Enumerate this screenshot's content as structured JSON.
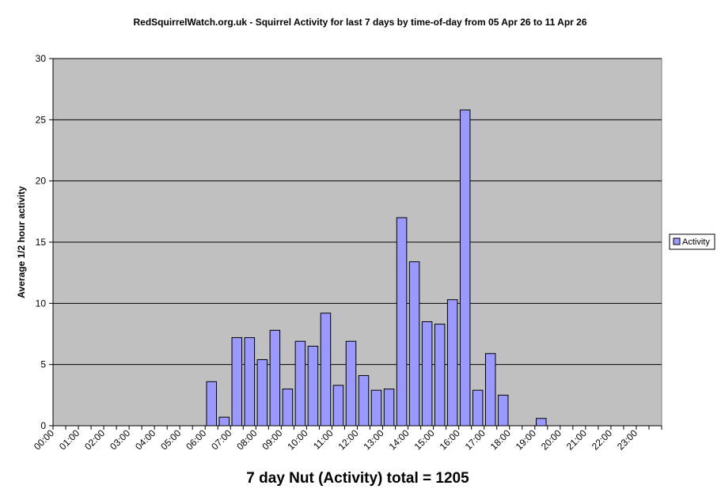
{
  "chart_data": {
    "type": "bar",
    "title": "RedSquirrelWatch.org.uk - Squirrel Activity for last 7 days by time-of-day from 05 Apr 26 to 11 Apr 26",
    "xlabel": "",
    "ylabel": "Average 1/2 hour activity",
    "ylim": [
      0,
      30
    ],
    "yticks": [
      "0",
      "5",
      "10",
      "15",
      "20",
      "25",
      "30"
    ],
    "grid": true,
    "legend_position": "right",
    "footer": "7 day Nut (Activity) total = 1205",
    "x_tick_labels": [
      "00:00",
      "01:00",
      "02:00",
      "03:00",
      "04:00",
      "05:00",
      "06:00",
      "07:00",
      "08:00",
      "09:00",
      "10:00",
      "11:00",
      "12:00",
      "13:00",
      "14:00",
      "15:00",
      "16:00",
      "17:00",
      "18:00",
      "19:00",
      "20:00",
      "21:00",
      "22:00",
      "23:00"
    ],
    "series": [
      {
        "name": "Activity",
        "color": "#9999ff",
        "values": [
          0,
          0,
          0,
          0,
          0,
          0,
          0,
          0,
          0,
          0,
          0,
          0,
          3.6,
          0.7,
          7.2,
          7.2,
          5.4,
          7.8,
          3.0,
          6.9,
          6.5,
          9.2,
          3.3,
          6.9,
          4.1,
          2.9,
          3.0,
          17.0,
          13.4,
          8.5,
          8.3,
          10.3,
          25.8,
          2.9,
          5.9,
          2.5,
          0,
          0,
          0.6,
          0,
          0,
          0,
          0,
          0,
          0,
          0,
          0,
          0
        ]
      }
    ]
  },
  "colors": {
    "plot_bg": "#c0c0c0",
    "bar_fill": "#9999ff",
    "bar_stroke": "#000000",
    "gridline": "#000000"
  }
}
